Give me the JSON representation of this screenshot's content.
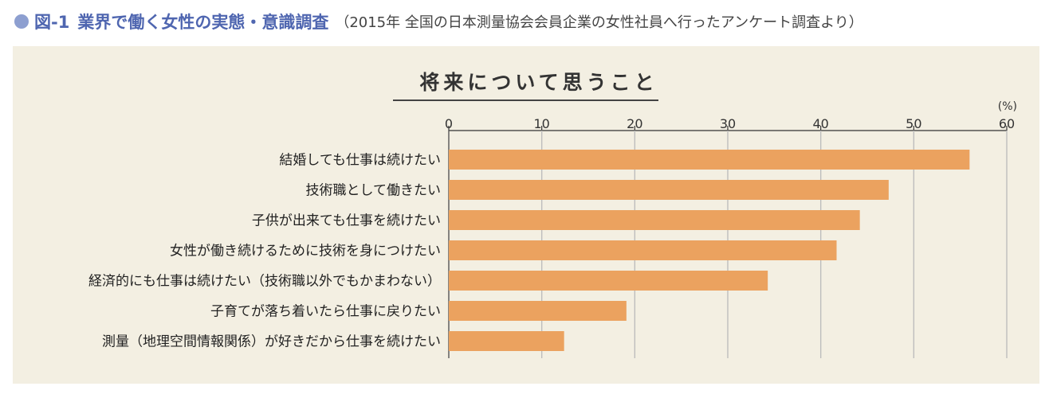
{
  "figure": {
    "label": "図-1",
    "title": "業界で働く女性の実態・意識調査",
    "source": "（2015年 全国の日本測量協会会員企業の女性社員へ行ったアンケート調査より）"
  },
  "colors": {
    "bar": "#eba25f",
    "panel": "#f3efe2",
    "accent": "#4f66b0",
    "bullet": "#8d9fd0",
    "grid": "#bdbdbd"
  },
  "chart_data": {
    "type": "bar",
    "orientation": "horizontal",
    "title": "将来について思うこと",
    "unit": "(%)",
    "xlim": [
      0,
      60
    ],
    "ticks": [
      0,
      10,
      20,
      30,
      40,
      50,
      60
    ],
    "grid": true,
    "categories": [
      "結婚しても仕事は続けたい",
      "技術職として働きたい",
      "子供が出来ても仕事を続けたい",
      "女性が働き続けるために技術を身につけたい",
      "経済的にも仕事は続けたい（技術職以外でもかまわない）",
      "子育てが落ち着いたら仕事に戻りたい",
      "測量（地理空間情報関係）が好きだから仕事を続けたい"
    ],
    "values": [
      56,
      47.3,
      44.2,
      41.7,
      34.3,
      19.1,
      12.4
    ]
  }
}
